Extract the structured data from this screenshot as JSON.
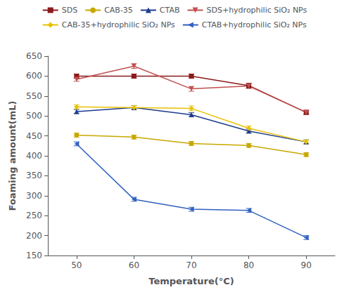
{
  "chart_data": {
    "type": "line",
    "xlabel": "Temperature(°C)",
    "ylabel": "Foaming amount(mL)",
    "x": [
      50,
      60,
      70,
      80,
      90
    ],
    "xlim": [
      45,
      95
    ],
    "xticks": [
      50,
      60,
      70,
      80,
      90
    ],
    "ylim": [
      150,
      650
    ],
    "yticks": [
      150,
      200,
      250,
      300,
      350,
      400,
      450,
      500,
      550,
      600,
      650
    ],
    "grid": false,
    "legend": "top",
    "series": [
      {
        "name": "SDS",
        "color": "#8B1A1A",
        "marker": "square",
        "line_style": "solid",
        "values": [
          600,
          600,
          600,
          576,
          509
        ],
        "errors": [
          5,
          5,
          5,
          6,
          5
        ]
      },
      {
        "name": "CAB-35",
        "color": "#C8A800",
        "marker": "circle",
        "line_style": "solid",
        "values": [
          452,
          447,
          431,
          426,
          403
        ],
        "errors": [
          5,
          5,
          5,
          5,
          5
        ]
      },
      {
        "name": "CTAB",
        "color": "#1B3B8C",
        "marker": "triangle-up",
        "line_style": "solid",
        "values": [
          511,
          521,
          503,
          462,
          435
        ],
        "errors": [
          5,
          5,
          5,
          5,
          5
        ]
      },
      {
        "name": "SDS+hydrophilic SiO₂ NPs",
        "color": "#C05050",
        "marker": "triangle-down",
        "line_style": "solid",
        "values": [
          592,
          625,
          568,
          575,
          509
        ],
        "errors": [
          5,
          6,
          6,
          6,
          5
        ]
      },
      {
        "name": "CAB-35+hydrophilic SiO₂ NPs",
        "color": "#E8C000",
        "marker": "diamond",
        "line_style": "solid",
        "values": [
          523,
          521,
          519,
          469,
          435
        ],
        "errors": [
          5,
          5,
          6,
          6,
          5
        ]
      },
      {
        "name": "CTAB+hydrophilic SiO₂ NPs",
        "color": "#3060C0",
        "marker": "triangle-left",
        "line_style": "solid",
        "values": [
          430,
          291,
          266,
          263,
          195
        ],
        "errors": [
          5,
          5,
          5,
          5,
          5
        ]
      }
    ]
  }
}
